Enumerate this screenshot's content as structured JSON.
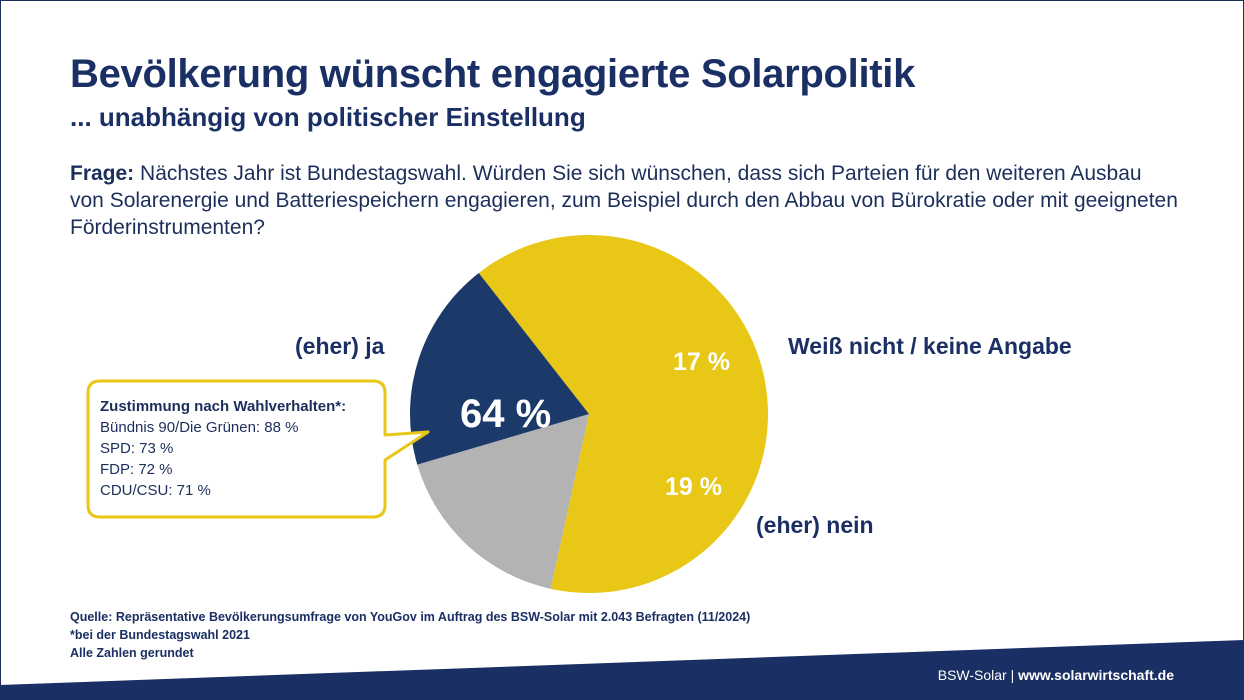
{
  "header": {
    "title": "Bevölkerung wünscht engagierte Solarpolitik",
    "subtitle": "... unabhängig von politischer Einstellung"
  },
  "question": {
    "label": "Frage:",
    "text": "Nächstes Jahr ist Bundestagswahl. Würden Sie sich wünschen, dass sich Parteien für den weiteren Ausbau von Solarenergie und Batteriespeichern engagieren, zum Beispiel durch den Abbau von Bürokratie oder mit geeigneten Förderinstrumenten?"
  },
  "chart_data": {
    "type": "pie",
    "slices": [
      {
        "name": "(eher) ja",
        "value": 64,
        "label": "64 %",
        "color": "#e8c717"
      },
      {
        "name": "Weiß nicht / keine Angabe",
        "value": 17,
        "label": "17 %",
        "color": "#b3b3b3"
      },
      {
        "name": "(eher) nein",
        "value": 19,
        "label": "19 %",
        "color": "#1b3a69"
      }
    ]
  },
  "callout": {
    "heading": "Zustimmung nach Wahlverhalten*:",
    "items": [
      "Bündnis 90/Die Grünen: 88 %",
      "SPD: 73 %",
      "FDP: 72 %",
      "CDU/CSU: 71 %"
    ],
    "border_color": "#e8c717"
  },
  "footer": {
    "source": "Quelle: Repräsentative Bevölkerungsumfrage von YouGov im Auftrag des BSW-Solar mit 2.043 Befragten (11/2024)",
    "note": "*bei der Bundestagswahl 2021",
    "rounding": "Alle Zahlen gerundet",
    "brand": "BSW-Solar",
    "separator": "|",
    "url": "www.solarwirtschaft.de"
  },
  "colors": {
    "navy": "#1a2f63",
    "yellow": "#e8c717",
    "grey": "#b3b3b3",
    "dark_blue": "#1b3a69"
  }
}
